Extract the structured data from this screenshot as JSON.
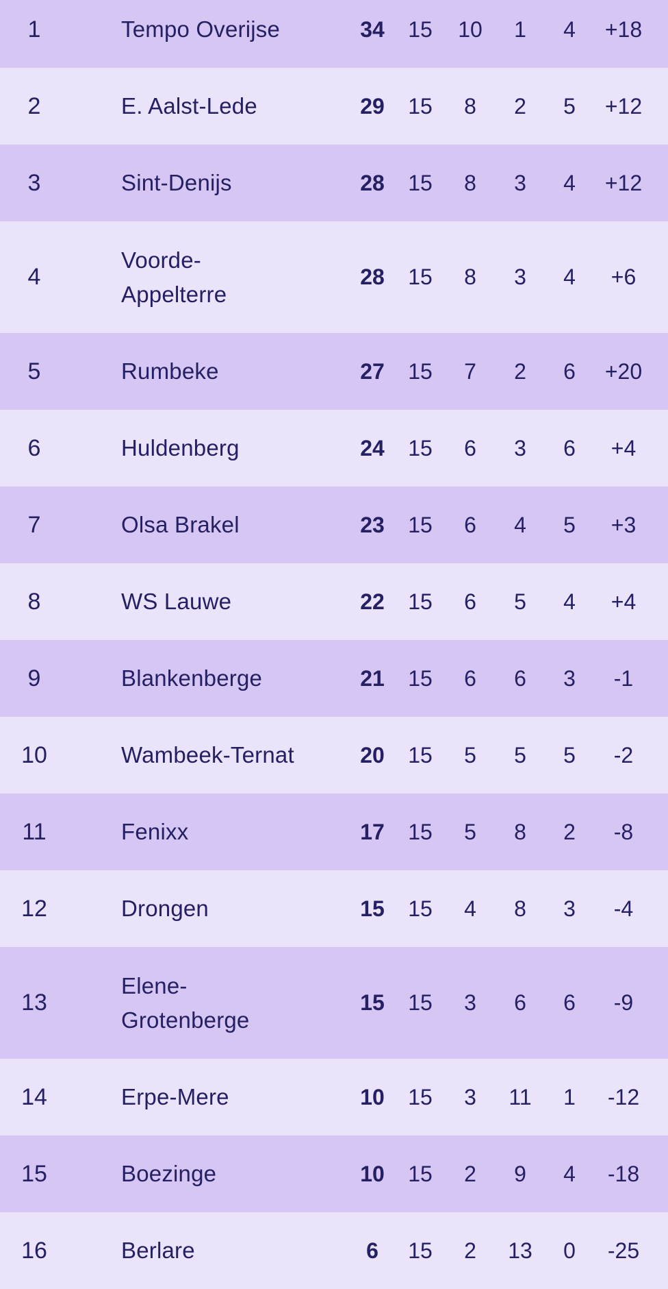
{
  "theme": {
    "row_dark": "#d6c6f3",
    "row_light": "#eae3fa",
    "text_color": "#252063"
  },
  "standings": {
    "rows": [
      {
        "pos": "1",
        "team": "Tempo Overijse",
        "pts": "34",
        "played": "15",
        "won": "10",
        "lost": "1",
        "drawn": "4",
        "diff": "+18"
      },
      {
        "pos": "2",
        "team": "E. Aalst-Lede",
        "pts": "29",
        "played": "15",
        "won": "8",
        "lost": "2",
        "drawn": "5",
        "diff": "+12"
      },
      {
        "pos": "3",
        "team": "Sint-Denijs",
        "pts": "28",
        "played": "15",
        "won": "8",
        "lost": "3",
        "drawn": "4",
        "diff": "+12"
      },
      {
        "pos": "4",
        "team": "Voorde-\nAppelterre",
        "pts": "28",
        "played": "15",
        "won": "8",
        "lost": "3",
        "drawn": "4",
        "diff": "+6"
      },
      {
        "pos": "5",
        "team": "Rumbeke",
        "pts": "27",
        "played": "15",
        "won": "7",
        "lost": "2",
        "drawn": "6",
        "diff": "+20"
      },
      {
        "pos": "6",
        "team": "Huldenberg",
        "pts": "24",
        "played": "15",
        "won": "6",
        "lost": "3",
        "drawn": "6",
        "diff": "+4"
      },
      {
        "pos": "7",
        "team": "Olsa Brakel",
        "pts": "23",
        "played": "15",
        "won": "6",
        "lost": "4",
        "drawn": "5",
        "diff": "+3"
      },
      {
        "pos": "8",
        "team": "WS Lauwe",
        "pts": "22",
        "played": "15",
        "won": "6",
        "lost": "5",
        "drawn": "4",
        "diff": "+4"
      },
      {
        "pos": "9",
        "team": "Blankenberge",
        "pts": "21",
        "played": "15",
        "won": "6",
        "lost": "6",
        "drawn": "3",
        "diff": "-1"
      },
      {
        "pos": "10",
        "team": "Wambeek-Ternat",
        "pts": "20",
        "played": "15",
        "won": "5",
        "lost": "5",
        "drawn": "5",
        "diff": "-2"
      },
      {
        "pos": "11",
        "team": "Fenixx",
        "pts": "17",
        "played": "15",
        "won": "5",
        "lost": "8",
        "drawn": "2",
        "diff": "-8"
      },
      {
        "pos": "12",
        "team": "Drongen",
        "pts": "15",
        "played": "15",
        "won": "4",
        "lost": "8",
        "drawn": "3",
        "diff": "-4"
      },
      {
        "pos": "13",
        "team": "Elene-\nGrotenberge",
        "pts": "15",
        "played": "15",
        "won": "3",
        "lost": "6",
        "drawn": "6",
        "diff": "-9"
      },
      {
        "pos": "14",
        "team": "Erpe-Mere",
        "pts": "10",
        "played": "15",
        "won": "3",
        "lost": "11",
        "drawn": "1",
        "diff": "-12"
      },
      {
        "pos": "15",
        "team": "Boezinge",
        "pts": "10",
        "played": "15",
        "won": "2",
        "lost": "9",
        "drawn": "4",
        "diff": "-18"
      },
      {
        "pos": "16",
        "team": "Berlare",
        "pts": "6",
        "played": "15",
        "won": "2",
        "lost": "13",
        "drawn": "0",
        "diff": "-25"
      }
    ]
  }
}
